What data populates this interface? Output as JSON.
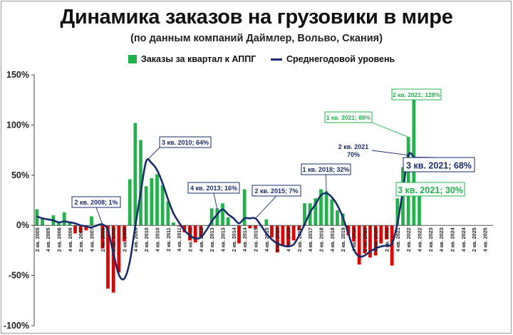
{
  "title": "Динамика заказов на грузовики в мире",
  "subtitle": "(по данным  компаний  Даймлер, Вольво,  Скания)",
  "legend": {
    "bars_label": "Заказы за квартал  к АППГ",
    "line_label": "Среднегодовой уровень"
  },
  "colors": {
    "positive": "#21b24b",
    "negative": "#e00000",
    "line": "#1a2b6e",
    "green_callout": "#21b24b",
    "blue_callout": "#1a2b6e"
  },
  "chart_data": {
    "type": "bar",
    "title": "Динамика заказов на грузовики в мире",
    "ylim": [
      -100,
      150
    ],
    "yticks": [
      -100,
      -50,
      0,
      50,
      100,
      150
    ],
    "ytick_labels": [
      "-100%",
      "-50%",
      "0%",
      "50%",
      "100%",
      "150%"
    ],
    "xtick_labels": [
      "2 кв. 2005",
      "4 кв. 2005",
      "2 кв. 2006",
      "4 кв. 2006",
      "2 кв. 2007",
      "4 кв. 2007",
      "2 кв. 2008",
      "4 кв. 2008",
      "2 кв. 2009",
      "4 кв. 2009",
      "2 кв. 2010",
      "4 кв. 2010",
      "2 кв. 2011",
      "4 кв. 2011",
      "2 кв. 2012",
      "4 кв. 2012",
      "2 кв. 2013",
      "4 кв. 2013",
      "2 кв. 2014",
      "4 кв. 2014",
      "2 кв. 2015",
      "4 кв. 2015",
      "2 кв. 2016",
      "4 кв. 2016",
      "2 кв. 2017",
      "4 кв. 2017",
      "2 кв. 2018",
      "4 кв. 2018",
      "2 кв. 2019",
      "4 кв. 2019",
      "2 кв. 2020",
      "4 кв. 2020",
      "2 кв. 2021",
      "4 кв. 2021",
      "2 кв. 2022",
      "4 кв. 2022",
      "2 кв. 2023",
      "4 кв. 2023",
      "2 кв. 2024",
      "4 кв. 2024",
      "2 кв. 2025",
      "4 кв. 2025"
    ],
    "series": [
      {
        "name": "Заказы за квартал  к АППГ",
        "type": "bar",
        "values": [
          16,
          7,
          0,
          10,
          3,
          13,
          4,
          -8,
          -7,
          -5,
          9,
          1,
          -23,
          -63,
          -67,
          -47,
          -16,
          46,
          102,
          85,
          39,
          47,
          51,
          40,
          24,
          3,
          -1,
          -7,
          -15,
          -17,
          -12,
          0,
          17,
          17,
          22,
          8,
          0,
          -18,
          36,
          -3,
          -3,
          0,
          6,
          -12,
          -27,
          -20,
          -21,
          -15,
          -5,
          22,
          22,
          27,
          36,
          34,
          26,
          15,
          12,
          -10,
          -16,
          -39,
          -28,
          -32,
          -30,
          -18,
          -14,
          -40,
          27,
          58,
          88,
          128,
          30
        ]
      },
      {
        "name": "Среднегодовой уровень",
        "type": "line",
        "values": [
          9,
          7,
          6,
          5,
          3,
          4,
          3,
          2,
          0,
          -1,
          -2,
          0,
          1,
          -5,
          -28,
          -49,
          -53,
          -36,
          -1,
          33,
          64,
          62,
          55,
          42,
          26,
          12,
          3,
          -5,
          -10,
          -13,
          -12,
          -5,
          4,
          11,
          16,
          11,
          7,
          2,
          7,
          7,
          7,
          0,
          -8,
          -14,
          -18,
          -20,
          -21,
          -19,
          -10,
          1,
          13,
          21,
          30,
          32,
          28,
          20,
          8,
          -8,
          -24,
          -31,
          -30,
          -26,
          -23,
          -21,
          -20,
          -18,
          2,
          35,
          70,
          68
        ]
      }
    ],
    "annotations": [
      {
        "text": "2 кв. 2008; 1%",
        "style": "blue"
      },
      {
        "text": "3 кв. 2010; 64%",
        "style": "blue"
      },
      {
        "text": "4 кв. 2013; 16%",
        "style": "blue"
      },
      {
        "text": "2 кв. 2015; 7%",
        "style": "blue"
      },
      {
        "text": "1 кв. 2018; 32%",
        "style": "blue"
      },
      {
        "text": "2 кв. 2021\n70%",
        "style": "plain"
      },
      {
        "text": "3 кв. 2021; 68%",
        "style": "blue-large"
      },
      {
        "text": "1 кв. 2021; 88%",
        "style": "green"
      },
      {
        "text": "2 кв. 2021; 128%",
        "style": "green"
      },
      {
        "text": "3 кв. 2021; 30%",
        "style": "green-large"
      }
    ]
  }
}
